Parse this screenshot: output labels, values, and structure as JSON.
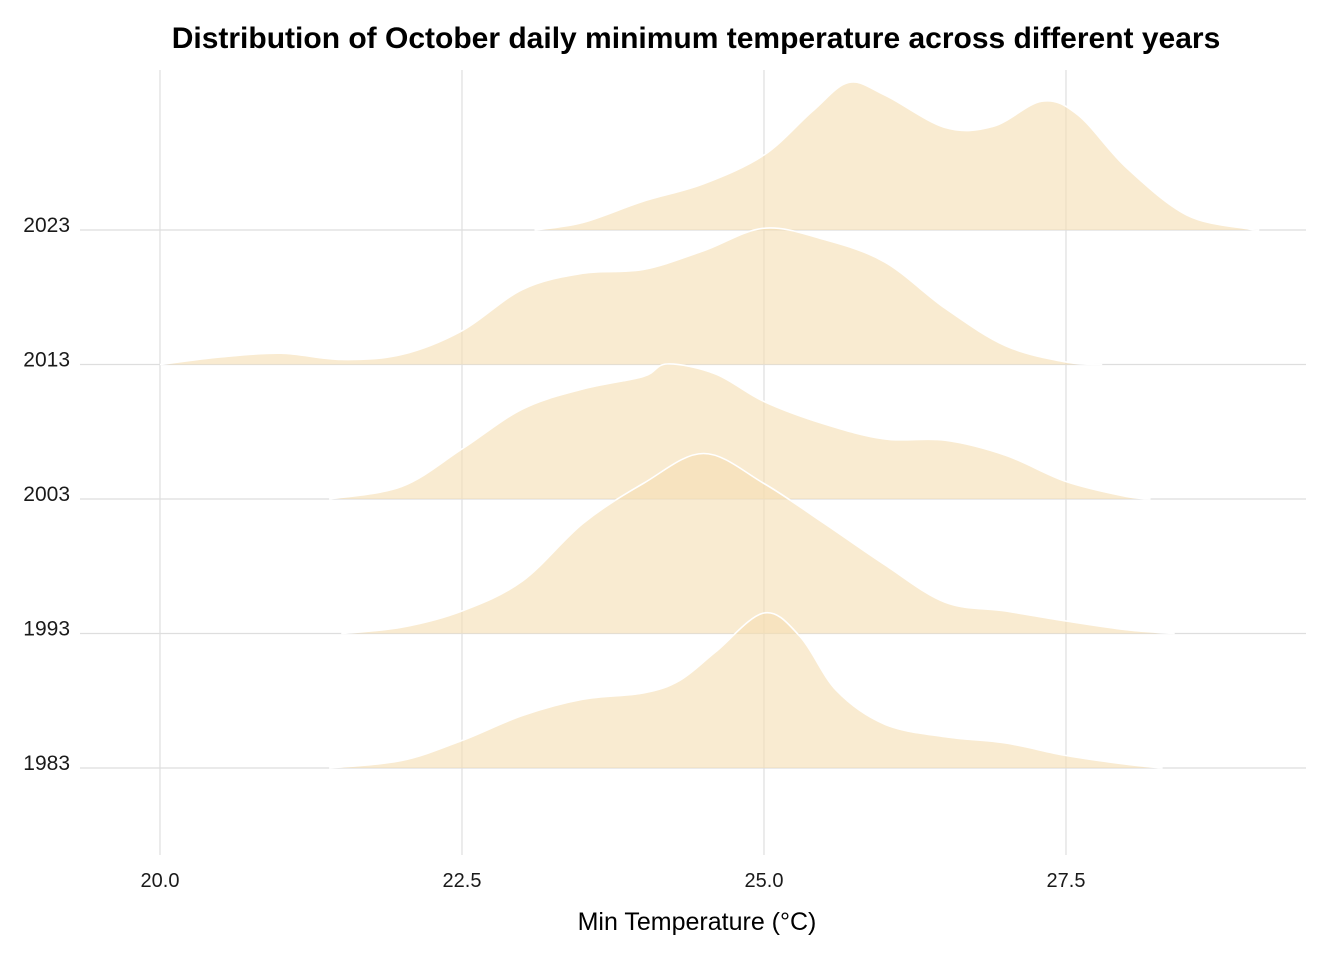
{
  "chart_data": {
    "type": "area",
    "subtype": "ridgeline",
    "title": "Distribution of October daily minimum temperature across different years",
    "xlabel": "Min Temperature (°C)",
    "ylabel": "",
    "xlim": [
      19.6,
      29.5
    ],
    "x_ticks": [
      "20.0",
      "22.5",
      "25.0",
      "27.5"
    ],
    "x_tick_values": [
      20.0,
      22.5,
      25.0,
      27.5
    ],
    "categories": [
      "1983",
      "1993",
      "2003",
      "2013",
      "2023"
    ],
    "fill_color": "#F5DEB3",
    "fill_opacity": 0.6,
    "outline_color": "#FFFFFF",
    "grid": true,
    "legend": "none",
    "series": [
      {
        "year": "1983",
        "points": [
          [
            21.4,
            0.0
          ],
          [
            22.0,
            0.06
          ],
          [
            22.5,
            0.22
          ],
          [
            23.0,
            0.42
          ],
          [
            23.5,
            0.55
          ],
          [
            24.0,
            0.6
          ],
          [
            24.3,
            0.7
          ],
          [
            24.6,
            0.93
          ],
          [
            25.0,
            1.24
          ],
          [
            25.3,
            1.05
          ],
          [
            25.6,
            0.62
          ],
          [
            26.0,
            0.35
          ],
          [
            26.5,
            0.25
          ],
          [
            27.0,
            0.2
          ],
          [
            27.5,
            0.1
          ],
          [
            28.0,
            0.03
          ],
          [
            28.3,
            0.0
          ]
        ]
      },
      {
        "year": "1993",
        "points": [
          [
            21.5,
            0.0
          ],
          [
            22.0,
            0.05
          ],
          [
            22.5,
            0.18
          ],
          [
            23.0,
            0.42
          ],
          [
            23.5,
            0.88
          ],
          [
            24.0,
            1.2
          ],
          [
            24.5,
            1.44
          ],
          [
            25.0,
            1.2
          ],
          [
            25.5,
            0.88
          ],
          [
            26.0,
            0.55
          ],
          [
            26.5,
            0.25
          ],
          [
            27.0,
            0.18
          ],
          [
            27.5,
            0.1
          ],
          [
            28.0,
            0.03
          ],
          [
            28.4,
            0.0
          ]
        ]
      },
      {
        "year": "2003",
        "points": [
          [
            21.4,
            0.0
          ],
          [
            22.0,
            0.1
          ],
          [
            22.5,
            0.4
          ],
          [
            23.0,
            0.72
          ],
          [
            23.5,
            0.88
          ],
          [
            24.0,
            0.98
          ],
          [
            24.2,
            1.08
          ],
          [
            24.6,
            1.0
          ],
          [
            25.0,
            0.78
          ],
          [
            25.5,
            0.6
          ],
          [
            26.0,
            0.48
          ],
          [
            26.5,
            0.47
          ],
          [
            27.0,
            0.35
          ],
          [
            27.5,
            0.14
          ],
          [
            28.0,
            0.02
          ],
          [
            28.2,
            0.0
          ]
        ]
      },
      {
        "year": "2013",
        "points": [
          [
            20.0,
            0.0
          ],
          [
            20.5,
            0.06
          ],
          [
            21.0,
            0.09
          ],
          [
            21.5,
            0.04
          ],
          [
            22.0,
            0.08
          ],
          [
            22.5,
            0.27
          ],
          [
            23.0,
            0.6
          ],
          [
            23.5,
            0.73
          ],
          [
            24.0,
            0.76
          ],
          [
            24.5,
            0.91
          ],
          [
            25.0,
            1.09
          ],
          [
            25.5,
            1.0
          ],
          [
            26.0,
            0.82
          ],
          [
            26.5,
            0.45
          ],
          [
            27.0,
            0.15
          ],
          [
            27.5,
            0.02
          ],
          [
            27.8,
            0.0
          ]
        ]
      },
      {
        "year": "2023",
        "points": [
          [
            23.1,
            0.0
          ],
          [
            23.5,
            0.06
          ],
          [
            24.0,
            0.23
          ],
          [
            24.5,
            0.37
          ],
          [
            25.0,
            0.6
          ],
          [
            25.4,
            0.95
          ],
          [
            25.7,
            1.18
          ],
          [
            26.0,
            1.08
          ],
          [
            26.5,
            0.82
          ],
          [
            26.9,
            0.83
          ],
          [
            27.3,
            1.03
          ],
          [
            27.6,
            0.92
          ],
          [
            28.0,
            0.5
          ],
          [
            28.5,
            0.12
          ],
          [
            29.0,
            0.01
          ],
          [
            29.1,
            0.0
          ]
        ]
      }
    ]
  }
}
